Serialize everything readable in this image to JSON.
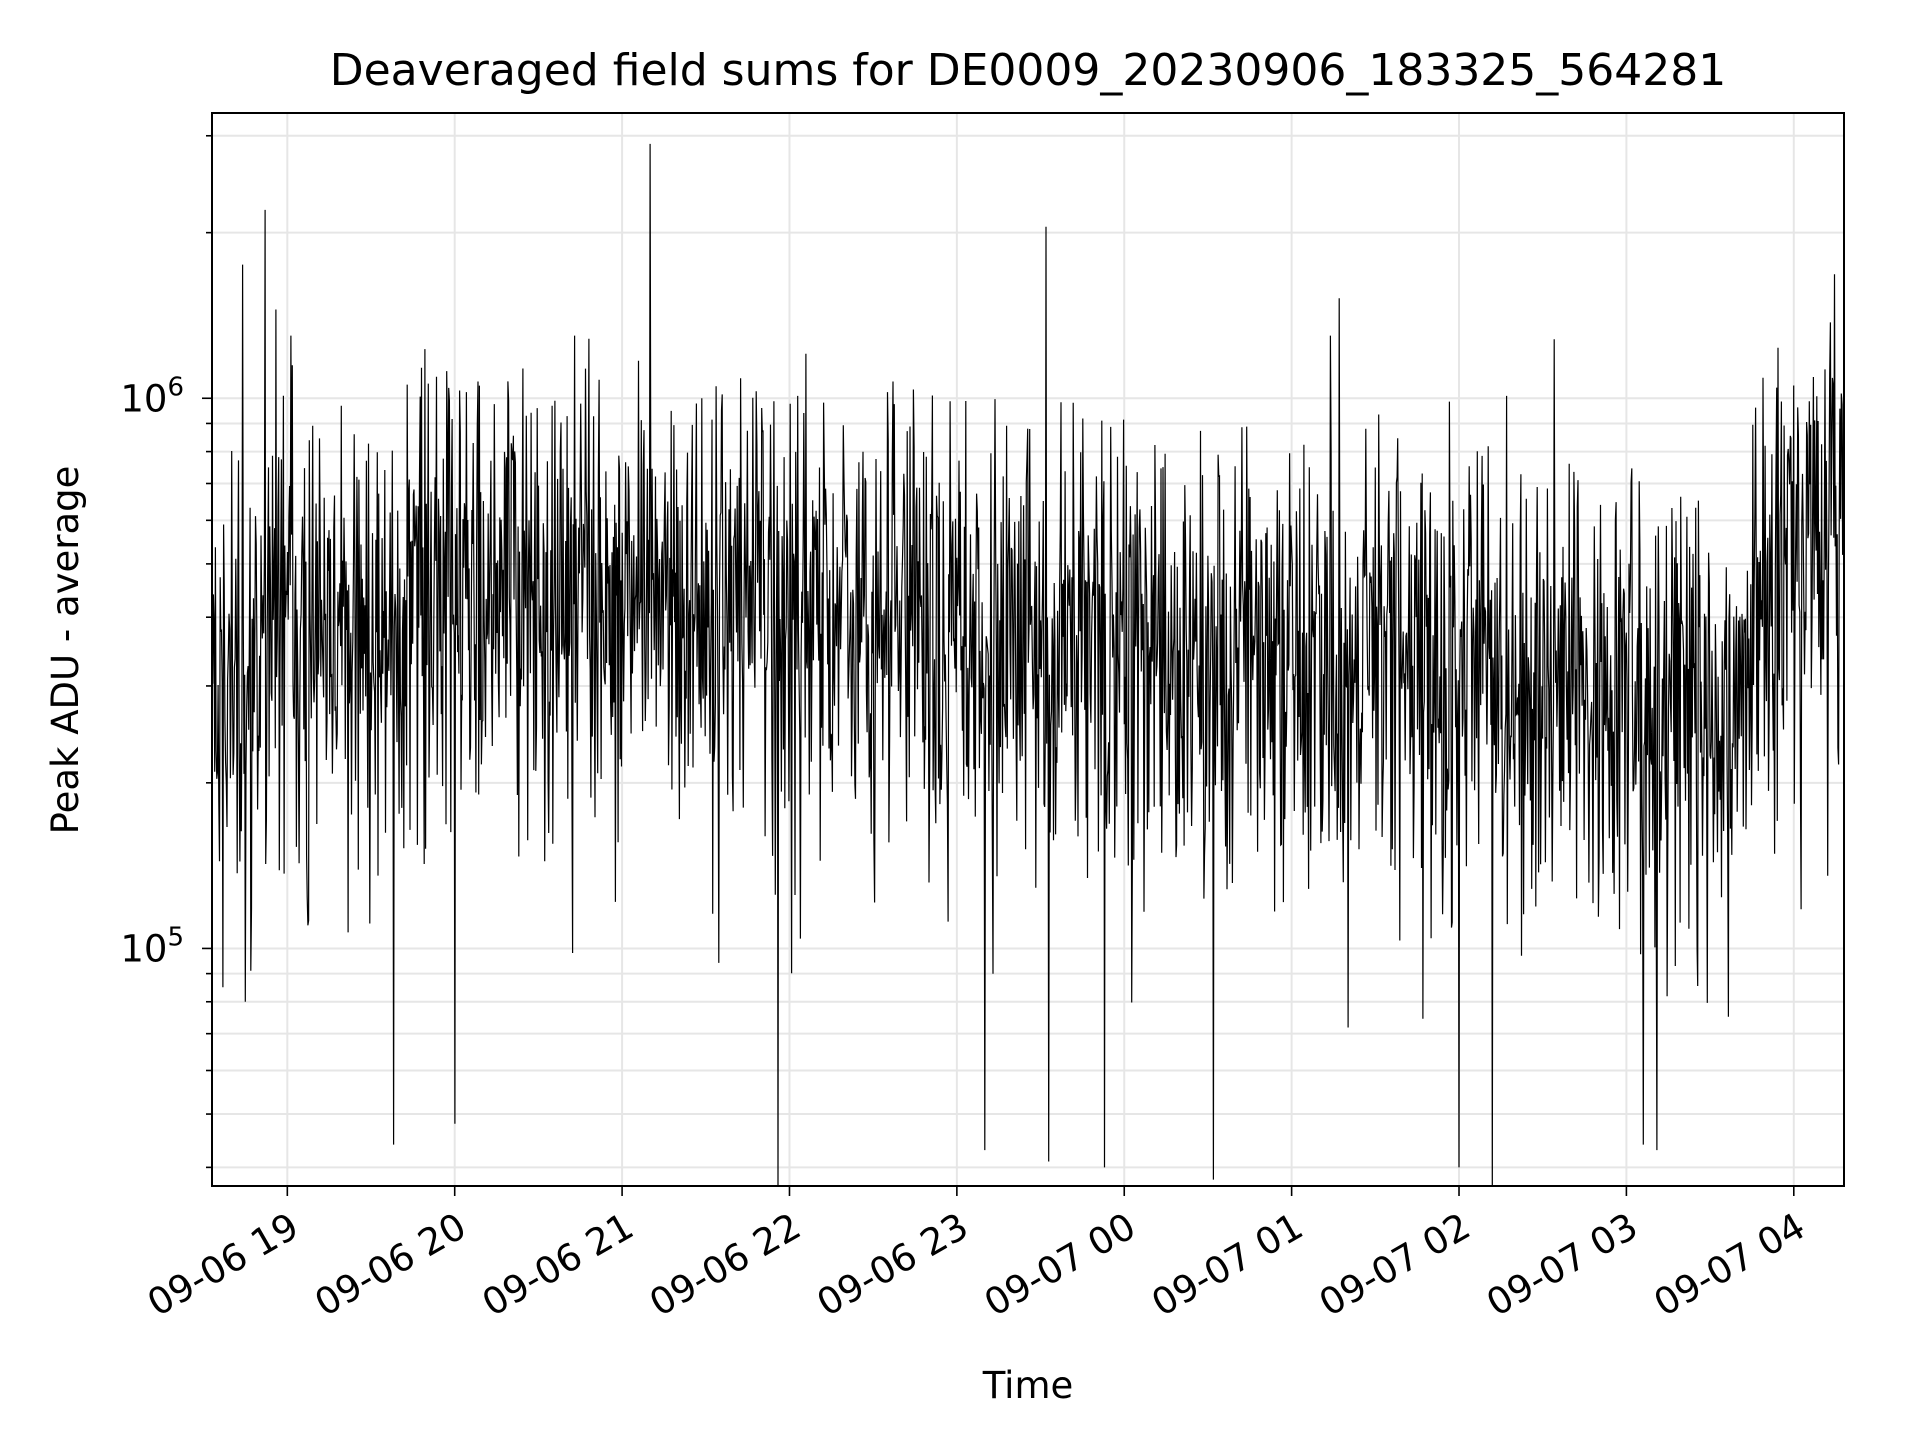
{
  "chart_data": {
    "type": "line",
    "title": "Deaveraged field sums for DE0009_20230906_183325_564281",
    "xlabel": "Time",
    "ylabel": "Peak ADU - average",
    "y_scale": "log",
    "ylim": [
      37000,
      3300000
    ],
    "xlim": [
      "2023-09-06 18:33",
      "2023-09-07 04:18"
    ],
    "grid": true,
    "line_color": "#000000",
    "grid_color": "#e6e6e6",
    "x_ticks": [
      {
        "date": "2023-09-06 19:00",
        "label": "09-06 19"
      },
      {
        "date": "2023-09-06 20:00",
        "label": "09-06 20"
      },
      {
        "date": "2023-09-06 21:00",
        "label": "09-06 21"
      },
      {
        "date": "2023-09-06 22:00",
        "label": "09-06 22"
      },
      {
        "date": "2023-09-06 23:00",
        "label": "09-06 23"
      },
      {
        "date": "2023-09-07 00:00",
        "label": "09-07 00"
      },
      {
        "date": "2023-09-07 01:00",
        "label": "09-07 01"
      },
      {
        "date": "2023-09-07 02:00",
        "label": "09-07 02"
      },
      {
        "date": "2023-09-07 03:00",
        "label": "09-07 03"
      },
      {
        "date": "2023-09-07 04:00",
        "label": "09-07 04"
      }
    ],
    "y_ticks": [
      {
        "value": 100000,
        "base": "10",
        "exp": "5"
      },
      {
        "value": 1000000,
        "base": "10",
        "exp": "6"
      }
    ],
    "baseline": [
      [
        "2023-09-06 18:33",
        300000
      ],
      [
        "2023-09-06 18:45",
        280000
      ],
      [
        "2023-09-06 18:55",
        380000
      ],
      [
        "2023-09-06 19:00",
        550000
      ],
      [
        "2023-09-06 19:05",
        360000
      ],
      [
        "2023-09-06 19:30",
        380000
      ],
      [
        "2023-09-06 20:00",
        420000
      ],
      [
        "2023-09-06 20:30",
        440000
      ],
      [
        "2023-09-06 21:00",
        440000
      ],
      [
        "2023-09-06 21:30",
        420000
      ],
      [
        "2023-09-06 22:00",
        400000
      ],
      [
        "2023-09-06 22:30",
        400000
      ],
      [
        "2023-09-06 23:00",
        380000
      ],
      [
        "2023-09-06 23:30",
        370000
      ],
      [
        "2023-09-07 00:00",
        340000
      ],
      [
        "2023-09-07 00:30",
        330000
      ],
      [
        "2023-09-07 01:00",
        330000
      ],
      [
        "2023-09-07 01:30",
        320000
      ],
      [
        "2023-09-07 02:00",
        310000
      ],
      [
        "2023-09-07 02:30",
        300000
      ],
      [
        "2023-09-07 03:00",
        280000
      ],
      [
        "2023-09-07 03:35",
        230000
      ],
      [
        "2023-09-07 03:45",
        380000
      ],
      [
        "2023-09-07 04:00",
        500000
      ],
      [
        "2023-09-07 04:18",
        660000
      ]
    ],
    "peaks": [
      [
        "2023-09-06 18:44",
        1750000
      ],
      [
        "2023-09-06 18:52",
        2200000
      ],
      [
        "2023-09-06 18:56",
        1450000
      ],
      [
        "2023-09-06 19:58",
        990000
      ],
      [
        "2023-09-06 20:36",
        990000
      ],
      [
        "2023-09-06 21:48",
        1030000
      ],
      [
        "2023-09-06 21:10",
        2900000
      ],
      [
        "2023-09-06 21:06",
        1170000
      ],
      [
        "2023-09-06 20:43",
        1300000
      ],
      [
        "2023-09-06 23:32",
        2050000
      ],
      [
        "2023-09-07 01:17",
        1520000
      ],
      [
        "2023-09-07 01:14",
        1300000
      ],
      [
        "2023-09-07 02:34",
        1280000
      ],
      [
        "2023-09-07 02:17",
        1010000
      ],
      [
        "2023-09-07 03:49",
        1090000
      ],
      [
        "2023-09-07 04:14",
        1060000
      ],
      [
        "2023-09-07 04:17",
        1020000
      ]
    ],
    "troughs": [
      [
        "2023-09-06 19:38",
        44000
      ],
      [
        "2023-09-06 20:00",
        48000
      ],
      [
        "2023-09-06 21:56",
        36000
      ],
      [
        "2023-09-06 23:10",
        43000
      ],
      [
        "2023-09-06 23:33",
        41000
      ],
      [
        "2023-09-06 23:53",
        40000
      ],
      [
        "2023-09-07 00:32",
        38000
      ],
      [
        "2023-09-07 02:00",
        40000
      ],
      [
        "2023-09-07 02:12",
        36000
      ],
      [
        "2023-09-07 03:06",
        44000
      ],
      [
        "2023-09-07 03:11",
        43000
      ],
      [
        "2023-09-06 18:37",
        85000
      ],
      [
        "2023-09-06 18:45",
        80000
      ]
    ]
  }
}
